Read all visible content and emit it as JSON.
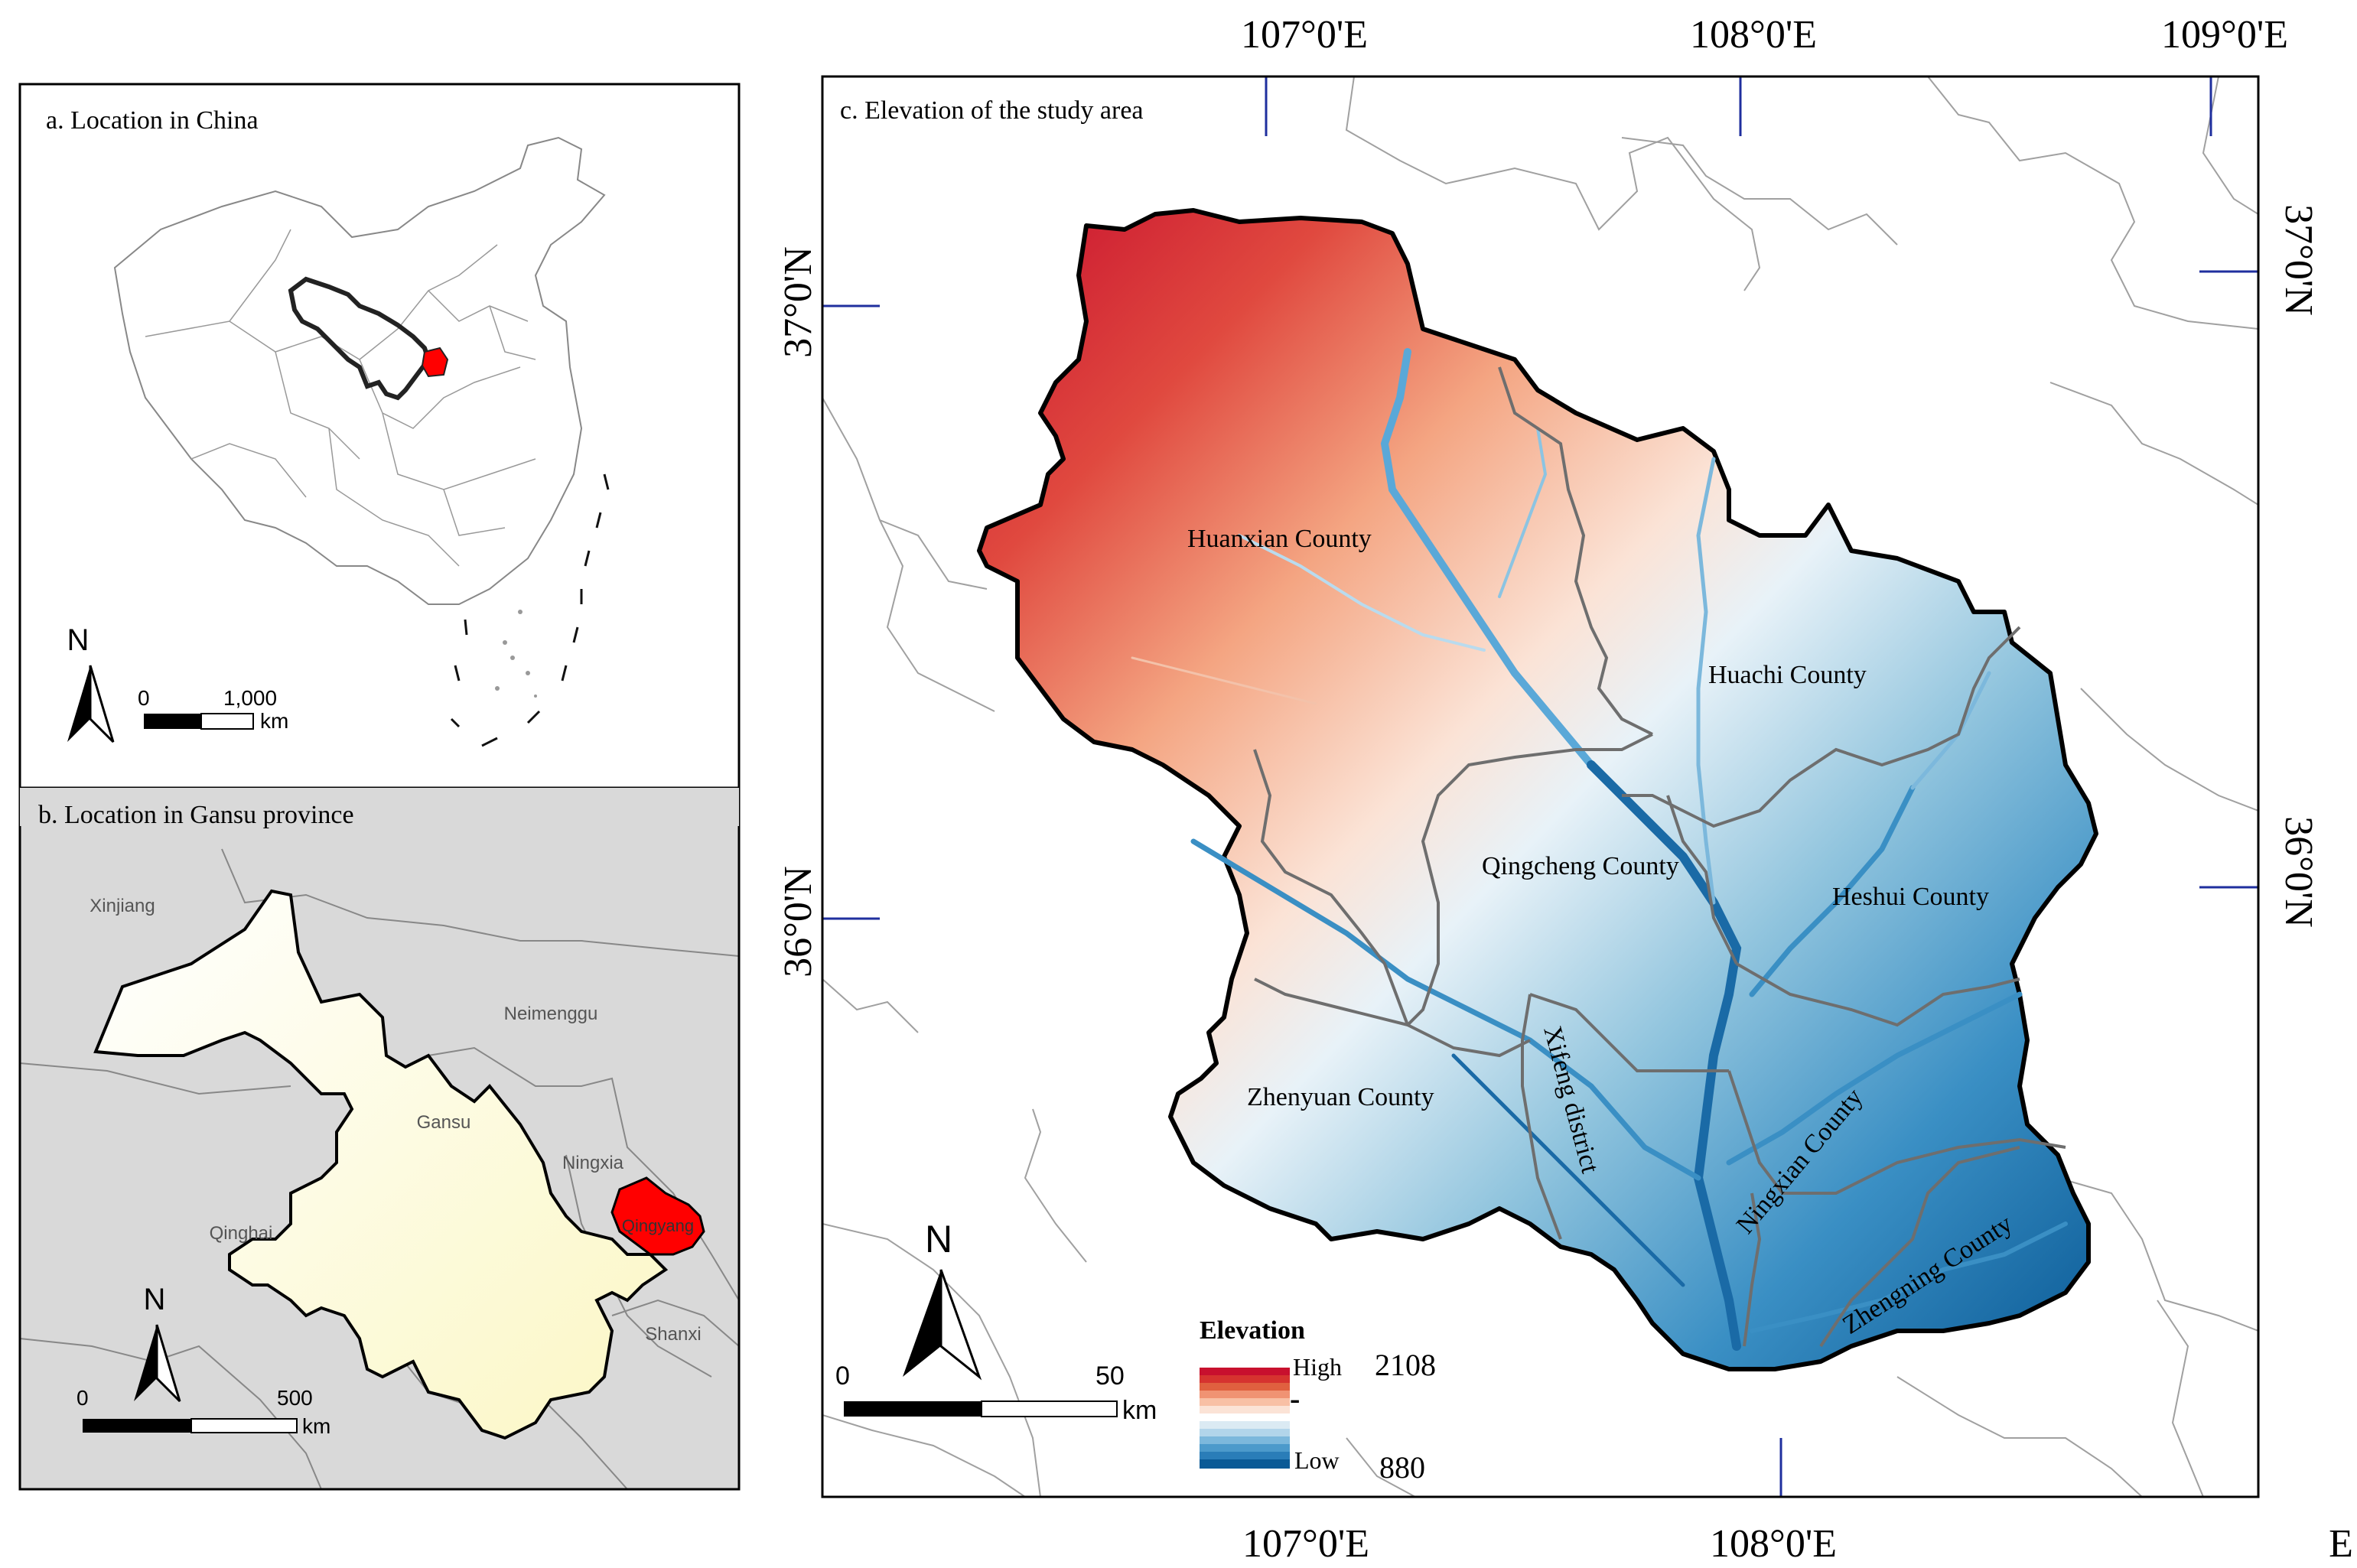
{
  "panel_a": {
    "title": "a. Location in China",
    "north": "N",
    "scale_zero": "0",
    "scale_max": "1,000",
    "scale_unit": "km"
  },
  "panel_b": {
    "title": "b. Location in Gansu province",
    "labels": {
      "xinjiang": "Xinjiang",
      "neimenggu": "Neimenggu",
      "gansu": "Gansu",
      "ningxia": "Ningxia",
      "qinghai": "Qinghai",
      "qingyang": "Qingyang",
      "shanxi": "Shanxi"
    },
    "north": "N",
    "scale_zero": "0",
    "scale_max": "500",
    "scale_unit": "km"
  },
  "panel_c": {
    "title": "c. Elevation of the study area",
    "top_lon": [
      "107°0'E",
      "108°0'E",
      "109°0'E"
    ],
    "bottom_lon": [
      "107°0'E",
      "108°0'E"
    ],
    "bottom_edge": "E",
    "left_lat": [
      "37°0'N",
      "36°0'N"
    ],
    "right_lat": [
      "37°0'N",
      "36°0'N"
    ],
    "counties": {
      "huanxian": "Huanxian County",
      "huachi": "Huachi County",
      "qingcheng": "Qingcheng County",
      "heshui": "Heshui County",
      "zhenyuan": "Zhenyuan County",
      "xifeng": "Xifeng district",
      "ningxian": "Ningxian County",
      "zhengning": "Zhengning County"
    },
    "north": "N",
    "scale_zero": "0",
    "scale_max": "50",
    "scale_unit": "km",
    "legend": {
      "title": "Elevation",
      "high_label": "High",
      "high_value": "2108",
      "dash": "-",
      "low_label": "Low",
      "low_value": "880"
    }
  },
  "colors": {
    "elev_high": "#c8102e",
    "elev_mid": "#f7f7f7",
    "elev_low": "#0a6aa6",
    "gansu_fill": "#ffffe0",
    "qingyang_fill": "#ff0000",
    "neighbour_fill": "#d9d9d9",
    "tick_blue": "#1f2f9e"
  }
}
